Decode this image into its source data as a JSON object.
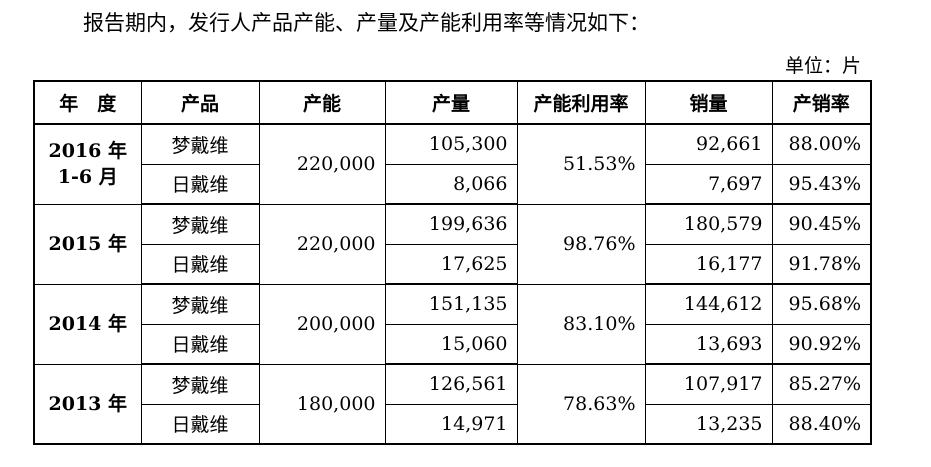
{
  "intro_text": "报告期内，发行人产品产能、产量及产能利用率等情况如下：",
  "unit_text": "单位：片",
  "table": {
    "headers": {
      "year": "年　度",
      "product": "产品",
      "capacity": "产能",
      "output": "产量",
      "utilization": "产能利用率",
      "sales": "销量",
      "sales_rate": "产销率"
    },
    "groups": [
      {
        "year_line1": "2016 年",
        "year_line2": "1-6 月",
        "capacity": "220,000",
        "utilization": "51.53%",
        "rows": [
          {
            "product": "梦戴维",
            "output": "105,300",
            "sales": "92,661",
            "sales_rate": "88.00%"
          },
          {
            "product": "日戴维",
            "output": "8,066",
            "sales": "7,697",
            "sales_rate": "95.43%"
          }
        ]
      },
      {
        "year_line1": "2015 年",
        "year_line2": "",
        "capacity": "220,000",
        "utilization": "98.76%",
        "rows": [
          {
            "product": "梦戴维",
            "output": "199,636",
            "sales": "180,579",
            "sales_rate": "90.45%"
          },
          {
            "product": "日戴维",
            "output": "17,625",
            "sales": "16,177",
            "sales_rate": "91.78%"
          }
        ]
      },
      {
        "year_line1": "2014 年",
        "year_line2": "",
        "capacity": "200,000",
        "utilization": "83.10%",
        "rows": [
          {
            "product": "梦戴维",
            "output": "151,135",
            "sales": "144,612",
            "sales_rate": "95.68%"
          },
          {
            "product": "日戴维",
            "output": "15,060",
            "sales": "13,693",
            "sales_rate": "90.92%"
          }
        ]
      },
      {
        "year_line1": "2013 年",
        "year_line2": "",
        "capacity": "180,000",
        "utilization": "78.63%",
        "rows": [
          {
            "product": "梦戴维",
            "output": "126,561",
            "sales": "107,917",
            "sales_rate": "85.27%"
          },
          {
            "product": "日戴维",
            "output": "14,971",
            "sales": "13,235",
            "sales_rate": "88.40%"
          }
        ]
      }
    ]
  }
}
